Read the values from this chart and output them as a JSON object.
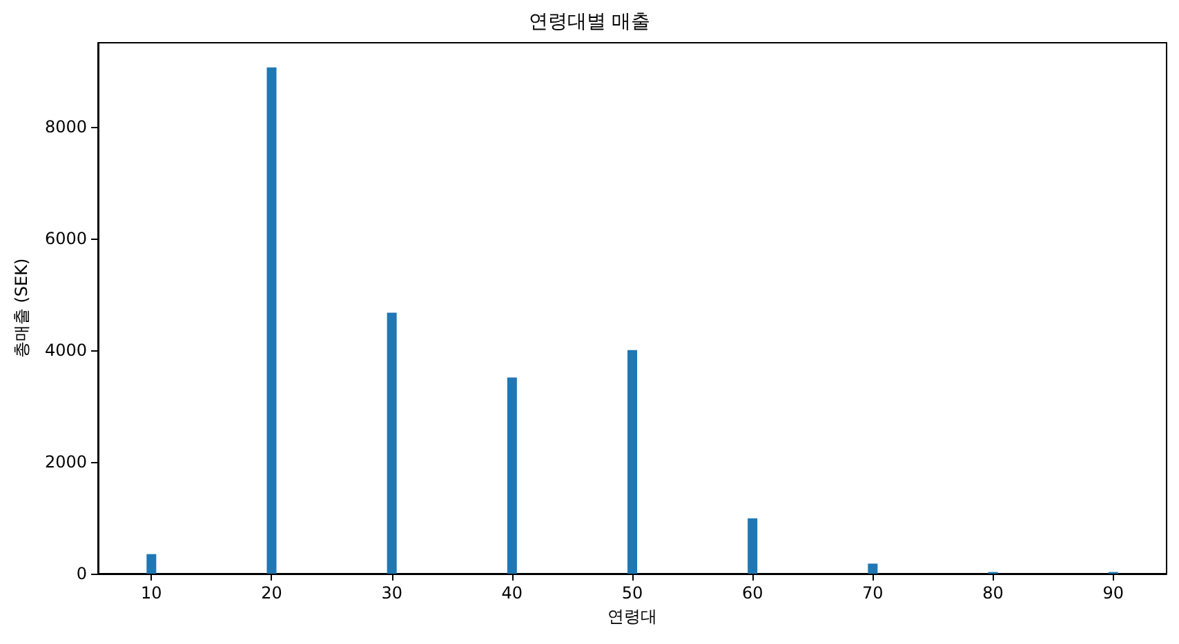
{
  "chart_data": {
    "type": "bar",
    "title": "연령대별 매출",
    "xlabel": "연령대",
    "ylabel": "총매출 (SEK)",
    "x": [
      10,
      20,
      30,
      40,
      50,
      60,
      70,
      80,
      90
    ],
    "values": [
      350,
      9060,
      4670,
      3510,
      4000,
      990,
      180,
      30,
      30
    ],
    "color": "#1f77b4",
    "xlim": [
      5.56,
      94.44
    ],
    "xticks": [
      10,
      20,
      30,
      40,
      50,
      60,
      70,
      80,
      90
    ],
    "ylim": [
      0,
      9500
    ],
    "yticks": [
      0,
      2000,
      4000,
      6000,
      8000
    ],
    "grid": false
  }
}
